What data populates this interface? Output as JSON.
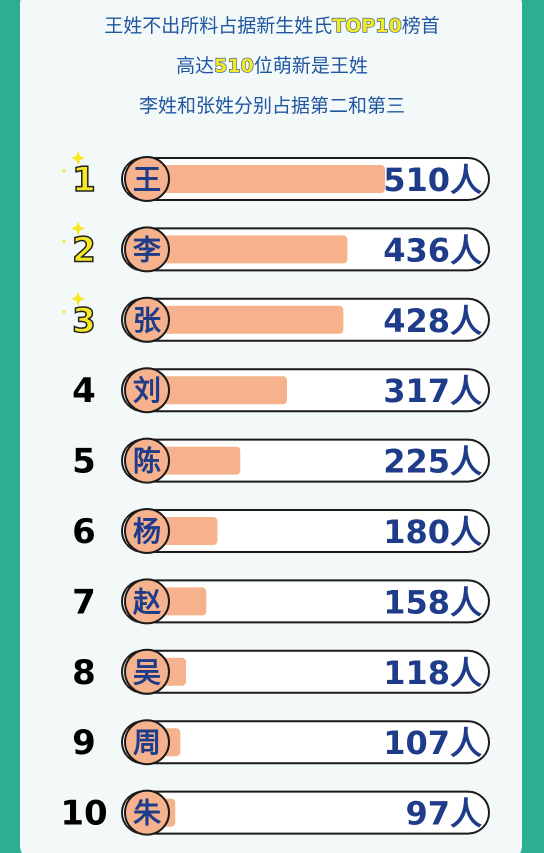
{
  "chart_data": {
    "type": "bar",
    "title_lines": [
      [
        "王姓不出所料占据新生姓氏",
        "TOP10",
        "榜首"
      ],
      [
        "高达",
        "510",
        "位萌新是王姓"
      ],
      [
        "李姓和张姓分别占据第二和第三"
      ]
    ],
    "ranks": [
      "1",
      "2",
      "3",
      "4",
      "5",
      "6",
      "7",
      "8",
      "9",
      "10"
    ],
    "categories": [
      "王",
      "李",
      "张",
      "刘",
      "陈",
      "杨",
      "赵",
      "吴",
      "周",
      "朱"
    ],
    "values": [
      510,
      436,
      428,
      317,
      225,
      180,
      158,
      118,
      107,
      97
    ],
    "value_labels": [
      "510人",
      "436人",
      "428人",
      "317人",
      "225人",
      "180人",
      "158人",
      "118人",
      "107人",
      "97人"
    ],
    "color": "#f6b28c",
    "highlight_color": "#f7e824"
  }
}
